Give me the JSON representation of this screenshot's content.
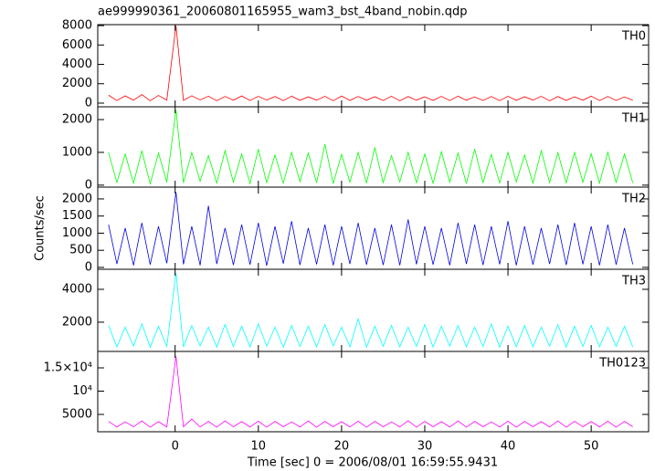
{
  "chart_data": [
    {
      "type": "line",
      "title": "ae999990361_20060801165955_wam3_bst_4band_nobin.qdp",
      "label": "TH0",
      "color": "#ff0000",
      "xlim": [
        -9.3,
        56.9
      ],
      "ylim": [
        -380,
        8100
      ],
      "yticks": [
        0,
        2000,
        4000,
        6000,
        8000
      ],
      "x": [
        -8,
        -7,
        -6,
        -5,
        -4,
        -3,
        -2,
        -1,
        0.1,
        1,
        2,
        3,
        4,
        5,
        6,
        7,
        8,
        9,
        10,
        11,
        12,
        13,
        14,
        15,
        16,
        17,
        18,
        19,
        20,
        21,
        22,
        23,
        24,
        25,
        26,
        27,
        28,
        29,
        30,
        31,
        32,
        33,
        34,
        35,
        36,
        37,
        38,
        39,
        40,
        41,
        42,
        43,
        44,
        45,
        46,
        47,
        48,
        49,
        50,
        51,
        52,
        53,
        54,
        55
      ],
      "values": [
        820,
        260,
        750,
        300,
        880,
        240,
        790,
        310,
        8000,
        280,
        760,
        330,
        710,
        250,
        690,
        300,
        740,
        270,
        700,
        320,
        680,
        260,
        720,
        290,
        650,
        310,
        700,
        250,
        730,
        280,
        690,
        300,
        660,
        270,
        710,
        240,
        680,
        310,
        650,
        280,
        700,
        260,
        720,
        300,
        640,
        270,
        690,
        250,
        710,
        290,
        660,
        310,
        700,
        240,
        680,
        280,
        650,
        300,
        720,
        260,
        690,
        270,
        640,
        300
      ]
    },
    {
      "type": "line",
      "label": "TH1",
      "color": "#00ff00",
      "xlim": [
        -9.3,
        56.9
      ],
      "ylim": [
        -60,
        2390
      ],
      "yticks": [
        0,
        1000,
        2000
      ],
      "x": [
        -8,
        -7,
        -6,
        -5,
        -4,
        -3,
        -2,
        -1,
        0.1,
        1,
        2,
        3,
        4,
        5,
        6,
        7,
        8,
        9,
        10,
        11,
        12,
        13,
        14,
        15,
        16,
        17,
        18,
        19,
        20,
        21,
        22,
        23,
        24,
        25,
        26,
        27,
        28,
        29,
        30,
        31,
        32,
        33,
        34,
        35,
        36,
        37,
        38,
        39,
        40,
        41,
        42,
        43,
        44,
        45,
        46,
        47,
        48,
        49,
        50,
        51,
        52,
        53,
        54,
        55
      ],
      "values": [
        1000,
        80,
        950,
        60,
        1050,
        40,
        980,
        90,
        2300,
        70,
        1000,
        120,
        900,
        60,
        1050,
        90,
        950,
        50,
        1100,
        80,
        920,
        60,
        1000,
        110,
        980,
        70,
        1250,
        50,
        940,
        90,
        1000,
        60,
        1150,
        80,
        900,
        100,
        1000,
        70,
        950,
        60,
        1020,
        90,
        980,
        50,
        1100,
        80,
        940,
        70,
        1000,
        100,
        920,
        60,
        1050,
        80,
        990,
        70,
        1000,
        90,
        960,
        60,
        1000,
        80,
        950,
        70
      ]
    },
    {
      "type": "line",
      "label": "TH2",
      "ylabel": "Counts/sec",
      "color": "#0000e6",
      "xlim": [
        -9.3,
        56.9
      ],
      "ylim": [
        -55,
        2345
      ],
      "yticks": [
        0,
        500,
        1000,
        1500,
        2000
      ],
      "x": [
        -8,
        -7,
        -6,
        -5,
        -4,
        -3,
        -2,
        -1,
        0.1,
        1,
        2,
        3,
        4,
        5,
        6,
        7,
        8,
        9,
        10,
        11,
        12,
        13,
        14,
        15,
        16,
        17,
        18,
        19,
        20,
        21,
        22,
        23,
        24,
        25,
        26,
        27,
        28,
        29,
        30,
        31,
        32,
        33,
        34,
        35,
        36,
        37,
        38,
        39,
        40,
        41,
        42,
        43,
        44,
        45,
        46,
        47,
        48,
        49,
        50,
        51,
        52,
        53,
        54,
        55
      ],
      "values": [
        1250,
        100,
        1150,
        60,
        1300,
        80,
        1200,
        120,
        2200,
        90,
        1200,
        60,
        1800,
        100,
        1150,
        70,
        1250,
        80,
        1300,
        50,
        1200,
        110,
        1350,
        70,
        1150,
        90,
        1250,
        60,
        1200,
        100,
        1300,
        80,
        1150,
        70,
        1250,
        60,
        1400,
        90,
        1200,
        80,
        1150,
        60,
        1300,
        100,
        1250,
        70,
        1200,
        90,
        1350,
        60,
        1200,
        80,
        1150,
        100,
        1250,
        70,
        1300,
        90,
        1200,
        60,
        1250,
        80,
        1150,
        90
      ]
    },
    {
      "type": "line",
      "label": "TH3",
      "color": "#00ffff",
      "xlim": [
        -9.3,
        56.9
      ],
      "ylim": [
        220,
        5220
      ],
      "yticks": [
        2000,
        4000
      ],
      "x": [
        -8,
        -7,
        -6,
        -5,
        -4,
        -3,
        -2,
        -1,
        0.1,
        1,
        2,
        3,
        4,
        5,
        6,
        7,
        8,
        9,
        10,
        11,
        12,
        13,
        14,
        15,
        16,
        17,
        18,
        19,
        20,
        21,
        22,
        23,
        24,
        25,
        26,
        27,
        28,
        29,
        30,
        31,
        32,
        33,
        34,
        35,
        36,
        37,
        38,
        39,
        40,
        41,
        42,
        43,
        44,
        45,
        46,
        47,
        48,
        49,
        50,
        51,
        52,
        53,
        54,
        55
      ],
      "values": [
        1800,
        500,
        1700,
        550,
        1900,
        480,
        1750,
        520,
        5000,
        500,
        1800,
        560,
        1700,
        480,
        1850,
        520,
        1750,
        500,
        1900,
        540,
        1700,
        480,
        1800,
        520,
        1750,
        500,
        1850,
        560,
        1700,
        500,
        2200,
        480,
        1750,
        530,
        1800,
        500,
        1700,
        520,
        1850,
        490,
        1750,
        540,
        1800,
        500,
        1700,
        520,
        1900,
        480,
        1750,
        510,
        1800,
        500,
        1700,
        540,
        1850,
        480,
        1750,
        520,
        1800,
        500,
        1700,
        530,
        1750,
        490
      ]
    },
    {
      "type": "line",
      "label": "TH0123",
      "xlabel": "Time [sec] 0 = 2006/08/01 16:59:55.9431",
      "color": "#ff00ff",
      "xlim": [
        -9.3,
        56.9
      ],
      "ylim": [
        1275,
        18530
      ],
      "yticks": [
        5000,
        {
          "value": 10000,
          "label": "10⁴"
        },
        {
          "value": 15000,
          "label": "1.5×10⁴"
        }
      ],
      "xticks": [
        0,
        10,
        20,
        30,
        40,
        50
      ],
      "x": [
        -8,
        -7,
        -6,
        -5,
        -4,
        -3,
        -2,
        -1,
        0.1,
        1,
        2,
        3,
        4,
        5,
        6,
        7,
        8,
        9,
        10,
        11,
        12,
        13,
        14,
        15,
        16,
        17,
        18,
        19,
        20,
        21,
        22,
        23,
        24,
        25,
        26,
        27,
        28,
        29,
        30,
        31,
        32,
        33,
        34,
        35,
        36,
        37,
        38,
        39,
        40,
        41,
        42,
        43,
        44,
        45,
        46,
        47,
        48,
        49,
        50,
        51,
        52,
        53,
        54,
        55
      ],
      "values": [
        3500,
        2300,
        3400,
        2350,
        3600,
        2250,
        3450,
        2300,
        17500,
        2350,
        4000,
        2300,
        3500,
        2250,
        3600,
        2350,
        3450,
        2300,
        3550,
        2250,
        3500,
        2350,
        3400,
        2300,
        3600,
        2250,
        3500,
        2350,
        3450,
        2300,
        3550,
        2250,
        3500,
        2350,
        3400,
        2300,
        3650,
        2250,
        3500,
        2350,
        3450,
        2300,
        3600,
        2250,
        3500,
        2350,
        3400,
        2300,
        3550,
        2250,
        3500,
        2350,
        3450,
        2300,
        3600,
        2250,
        3500,
        2350,
        3450,
        2300,
        3550,
        2250,
        3500,
        2350
      ]
    }
  ]
}
